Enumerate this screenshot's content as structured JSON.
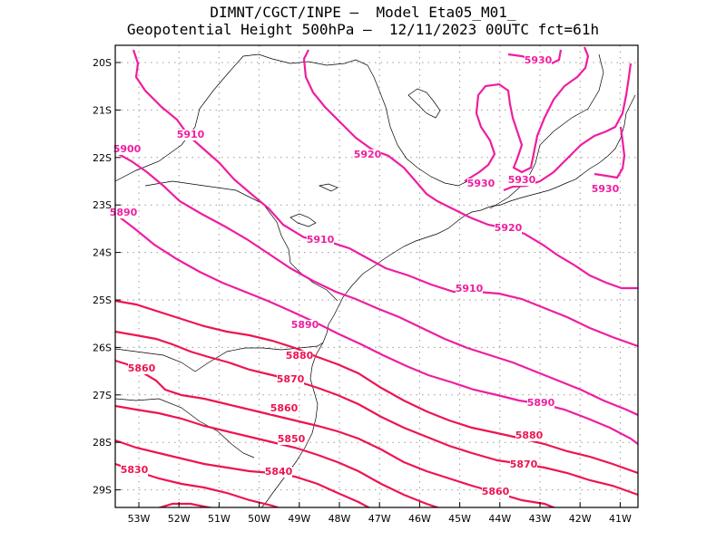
{
  "title": {
    "line1": "DIMNT/CGCT/INPE –  Model Eta05_M01_",
    "line2": "Geopotential Height 500hPa –  12/11/2023 00UTC fct=61h"
  },
  "axes": {
    "lon_labels": [
      "53W",
      "52W",
      "51W",
      "50W",
      "49W",
      "48W",
      "47W",
      "46W",
      "45W",
      "44W",
      "43W",
      "42W",
      "41W"
    ],
    "lat_labels": [
      "20S",
      "21S",
      "22S",
      "23S",
      "24S",
      "25S",
      "26S",
      "27S",
      "28S",
      "29S"
    ]
  },
  "colors": {
    "high_contours": "#ee1ea0",
    "low_contours": "#ee1450",
    "coastline": "#000000",
    "grid": "#9a9a9a"
  },
  "contour_labels": [
    {
      "text": "5930"
    },
    {
      "text": "5930"
    },
    {
      "text": "5930"
    },
    {
      "text": "5930"
    },
    {
      "text": "5920"
    },
    {
      "text": "5920"
    },
    {
      "text": "5910"
    },
    {
      "text": "5910"
    },
    {
      "text": "5910"
    },
    {
      "text": "5900"
    },
    {
      "text": "5890"
    },
    {
      "text": "5890"
    },
    {
      "text": "5890"
    },
    {
      "text": "5880"
    },
    {
      "text": "5880"
    },
    {
      "text": "5870"
    },
    {
      "text": "5870"
    },
    {
      "text": "5860"
    },
    {
      "text": "5860"
    },
    {
      "text": "5860"
    },
    {
      "text": "5850"
    },
    {
      "text": "5840"
    },
    {
      "text": "5830"
    }
  ]
}
